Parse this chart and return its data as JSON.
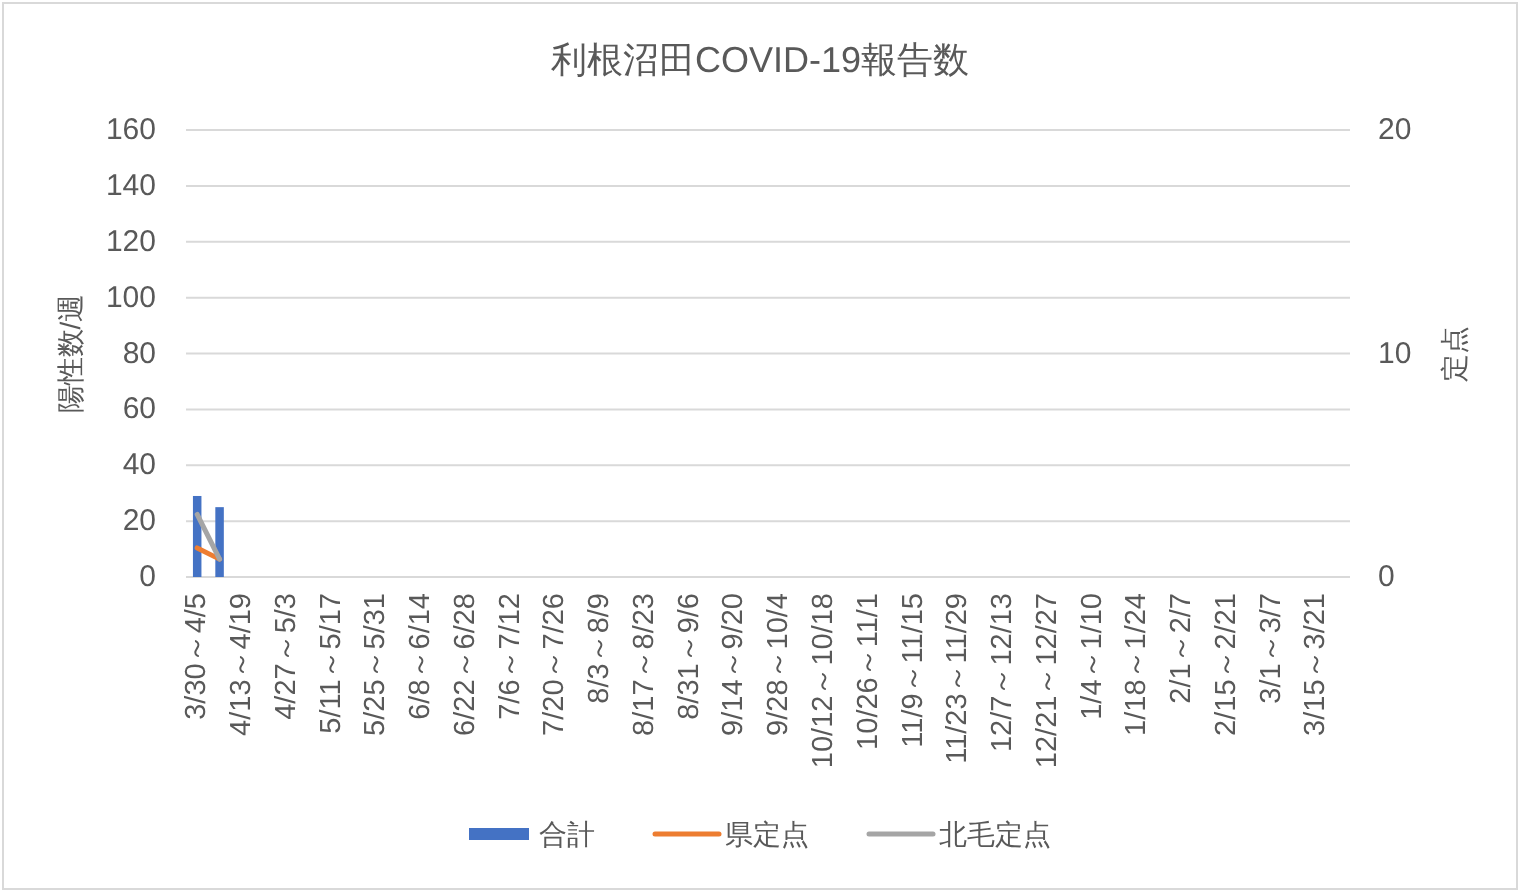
{
  "chart_data": {
    "type": "bar",
    "title": "利根沼田COVID-19報告数",
    "ylabel": "陽性数/週",
    "y2label": "定点",
    "categories": [
      "3/30～4/5",
      null,
      "4/13～4/19",
      null,
      "4/27～5/3",
      null,
      "5/11～5/17",
      null,
      "5/25～5/31",
      null,
      "6/8～6/14",
      null,
      "6/22～6/28",
      null,
      "7/6～7/12",
      null,
      "7/20～7/26",
      null,
      "8/3～8/9",
      null,
      "8/17～8/23",
      null,
      "8/31～9/6",
      null,
      "9/14～9/20",
      null,
      "9/28～10/4",
      null,
      "10/12～10/18",
      null,
      "10/26～11/1",
      null,
      "11/9～11/15",
      null,
      "11/23～11/29",
      null,
      "12/7～12/13",
      null,
      "12/21～12/27",
      null,
      "1/4～1/10",
      null,
      "1/18～1/24",
      null,
      "2/1～2/7",
      null,
      "2/15～2/21",
      null,
      "3/1～3/7",
      null,
      "3/15～3/21",
      null
    ],
    "series": [
      {
        "name": "合計",
        "color": "#4472c4",
        "values": [
          29,
          25,
          null,
          null,
          null,
          null,
          null,
          null,
          null,
          null,
          null,
          null,
          null,
          null,
          null,
          null,
          null,
          null,
          null,
          null,
          null,
          null,
          null,
          null,
          null,
          null,
          null,
          null,
          null,
          null,
          null,
          null,
          null,
          null,
          null,
          null,
          null,
          null,
          null,
          null,
          null,
          null,
          null,
          null,
          null,
          null,
          null,
          null,
          null,
          null,
          null,
          null
        ]
      },
      {
        "name": "県定点",
        "type": "line",
        "axis": "y2",
        "color": "#ed7d31",
        "values": [
          1.3,
          0.8,
          null,
          null,
          null,
          null,
          null,
          null,
          null,
          null,
          null,
          null,
          null,
          null,
          null,
          null,
          null,
          null,
          null,
          null,
          null,
          null,
          null,
          null,
          null,
          null,
          null,
          null,
          null,
          null,
          null,
          null,
          null,
          null,
          null,
          null,
          null,
          null,
          null,
          null,
          null,
          null,
          null,
          null,
          null,
          null,
          null,
          null,
          null,
          null,
          null,
          null
        ]
      },
      {
        "name": "北毛定点",
        "type": "line",
        "axis": "y2",
        "color": "#a5a5a5",
        "values": [
          2.8,
          0.8,
          null,
          null,
          null,
          null,
          null,
          null,
          null,
          null,
          null,
          null,
          null,
          null,
          null,
          null,
          null,
          null,
          null,
          null,
          null,
          null,
          null,
          null,
          null,
          null,
          null,
          null,
          null,
          null,
          null,
          null,
          null,
          null,
          null,
          null,
          null,
          null,
          null,
          null,
          null,
          null,
          null,
          null,
          null,
          null,
          null,
          null,
          null,
          null,
          null,
          null
        ]
      }
    ],
    "ylim": [
      0,
      160
    ],
    "yticks": [
      0,
      20,
      40,
      60,
      80,
      100,
      120,
      140,
      160
    ],
    "y2lim": [
      0,
      20
    ],
    "y2ticks": [
      0,
      10,
      20
    ],
    "grid": "y",
    "legend": "bottom",
    "marker": "none",
    "line_style": "solid"
  }
}
